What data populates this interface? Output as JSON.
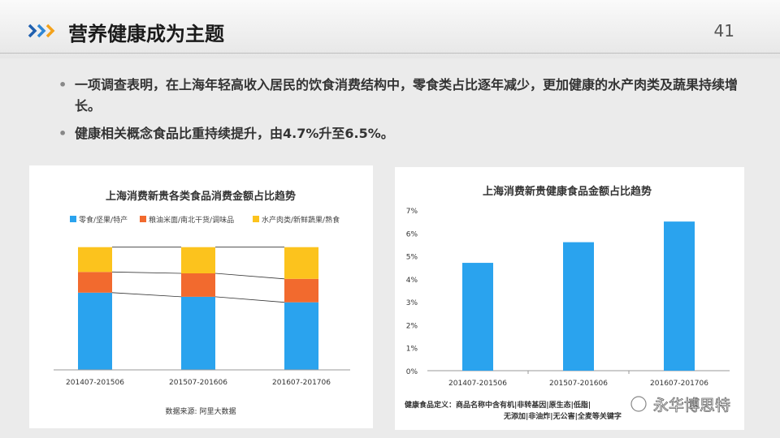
{
  "header": {
    "title": "营养健康成为主题",
    "page_number": "41"
  },
  "bullets": [
    "一项调查表明，在上海年轻高收入居民的饮食消费结构中，零食类占比逐年减少，更加健康的水产肉类及蔬果持续增长。",
    "健康相关概念食品比重持续提升，由4.7%升至6.5%。"
  ],
  "chart_data": [
    {
      "type": "bar",
      "stacked": true,
      "title": "上海消费新贵各类食品消费金额占比趋势",
      "categories": [
        "201407-201506",
        "201507-201606",
        "201607-201706"
      ],
      "series": [
        {
          "name": "零食/坚果/特产",
          "color": "#2aa3ee",
          "values": [
            0.56,
            0.53,
            0.49
          ]
        },
        {
          "name": "粮油米面/南北干货/调味品",
          "color": "#f26a2e",
          "values": [
            0.15,
            0.17,
            0.17
          ]
        },
        {
          "name": "水产肉类/新鲜蔬果/熟食",
          "color": "#fcc31d",
          "values": [
            0.18,
            0.19,
            0.23
          ]
        }
      ],
      "source": "数据来源: 阿里大数据",
      "legend": "top"
    },
    {
      "type": "bar",
      "title": "上海消费新贵健康食品金额占比趋势",
      "categories": [
        "201407-201506",
        "201507-201606",
        "201607-201706"
      ],
      "values": [
        4.7,
        5.6,
        6.5
      ],
      "ylim": [
        0,
        7
      ],
      "yticks": [
        "0%",
        "1%",
        "2%",
        "3%",
        "4%",
        "5%",
        "6%",
        "7%"
      ],
      "color": "#2aa3ee",
      "note": "健康食品定义：商品名称中含有机|非转基因|原生态|低脂|无添加|非油炸|无公害|全麦等关键字"
    }
  ],
  "watermark": "永华博思特"
}
